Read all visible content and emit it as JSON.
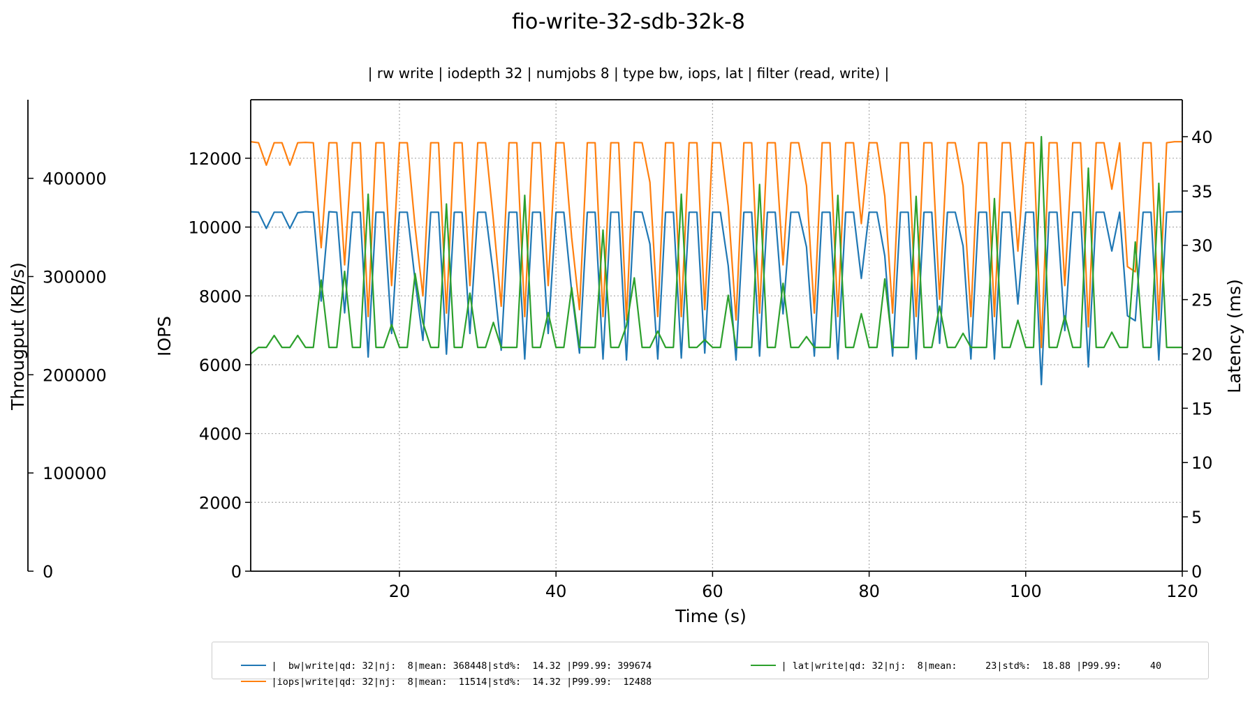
{
  "chart_data": {
    "type": "line",
    "title": "fio-write-32-sdb-32k-8",
    "subtitle": "| rw write | iodepth 32 | numjobs 8 | type bw, iops, lat | filter (read, write) |",
    "xlabel": "Time (s)",
    "ylabel_left": "IOPS",
    "ylabel_far_left": "Througput (KB/s)",
    "ylabel_right": "Latency (ms)",
    "xlim": [
      1,
      120
    ],
    "ylim_iops": [
      0,
      13700
    ],
    "ylim_bw": [
      0,
      480000
    ],
    "ylim_lat": [
      0,
      43.4
    ],
    "x_ticks": [
      20,
      40,
      60,
      80,
      100,
      120
    ],
    "iops_ticks": [
      0,
      2000,
      4000,
      6000,
      8000,
      10000,
      12000
    ],
    "bw_ticks": [
      0,
      100000,
      200000,
      300000,
      400000
    ],
    "lat_ticks": [
      0,
      5,
      10,
      15,
      20,
      25,
      30,
      35,
      40
    ],
    "grid": true,
    "legend_position": "bottom",
    "colors": {
      "bw": "#1f77b4",
      "iops": "#ff7f0e",
      "lat": "#2ca02c"
    },
    "series": [
      {
        "name": "|  bw|write|qd: 32|nj:  8|mean: 368448|std%:  14.32 |P99.99: 399674",
        "axis": "bw",
        "color": "#1f77b4",
        "x": [
          1,
          2,
          3,
          4,
          5,
          6,
          7,
          8,
          9,
          10,
          11,
          12,
          13,
          14,
          15,
          16,
          17,
          18,
          19,
          20,
          21,
          22,
          23,
          24,
          25,
          26,
          27,
          28,
          29,
          30,
          31,
          32,
          33,
          34,
          35,
          36,
          37,
          38,
          39,
          40,
          41,
          42,
          43,
          44,
          45,
          46,
          47,
          48,
          49,
          50,
          51,
          52,
          53,
          54,
          55,
          56,
          57,
          58,
          59,
          60,
          61,
          62,
          63,
          64,
          65,
          66,
          67,
          68,
          69,
          70,
          71,
          72,
          73,
          74,
          75,
          76,
          77,
          78,
          79,
          80,
          81,
          82,
          83,
          84,
          85,
          86,
          87,
          88,
          89,
          90,
          91,
          92,
          93,
          94,
          95,
          96,
          97,
          98,
          99,
          100,
          101,
          102,
          103,
          104,
          105,
          106,
          107,
          108,
          109,
          110,
          111,
          112,
          113,
          114,
          115,
          116,
          117,
          118,
          119,
          120
        ],
        "values": [
          366000,
          365500,
          349000,
          365500,
          365500,
          349000,
          365000,
          366000,
          365500,
          275000,
          366000,
          365500,
          263000,
          365500,
          365500,
          218000,
          365500,
          365500,
          242000,
          365500,
          365500,
          296000,
          235000,
          365500,
          365500,
          221000,
          365500,
          365500,
          242000,
          365500,
          365500,
          302000,
          225000,
          365500,
          365500,
          216000,
          365500,
          365500,
          242000,
          365500,
          365500,
          285000,
          222000,
          365500,
          365500,
          216000,
          365500,
          365500,
          215000,
          366000,
          365500,
          333000,
          216000,
          365500,
          365500,
          217000,
          365500,
          365500,
          222000,
          365500,
          365500,
          311000,
          215000,
          365500,
          365500,
          219000,
          365500,
          365500,
          262000,
          365500,
          365500,
          330000,
          219000,
          365500,
          365500,
          216000,
          365500,
          365500,
          298000,
          365500,
          365500,
          321000,
          219000,
          365500,
          365500,
          216000,
          365500,
          365500,
          232000,
          365500,
          365500,
          331000,
          216000,
          365500,
          365500,
          216000,
          365500,
          365500,
          272000,
          365500,
          365500,
          190000,
          365500,
          365500,
          245000,
          365500,
          365500,
          208000,
          365500,
          365500,
          326000,
          365500,
          260000,
          255000,
          365500,
          365500,
          215000,
          365500,
          366000,
          366000
        ]
      },
      {
        "name": "|iops|write|qd: 32|nj:  8|mean:  11514|std%:  14.32 |P99.99:  12488",
        "axis": "iops",
        "color": "#ff7f0e",
        "x": [
          1,
          2,
          3,
          4,
          5,
          6,
          7,
          8,
          9,
          10,
          11,
          12,
          13,
          14,
          15,
          16,
          17,
          18,
          19,
          20,
          21,
          22,
          23,
          24,
          25,
          26,
          27,
          28,
          29,
          30,
          31,
          32,
          33,
          34,
          35,
          36,
          37,
          38,
          39,
          40,
          41,
          42,
          43,
          44,
          45,
          46,
          47,
          48,
          49,
          50,
          51,
          52,
          53,
          54,
          55,
          56,
          57,
          58,
          59,
          60,
          61,
          62,
          63,
          64,
          65,
          66,
          67,
          68,
          69,
          70,
          71,
          72,
          73,
          74,
          75,
          76,
          77,
          78,
          79,
          80,
          81,
          82,
          83,
          84,
          85,
          86,
          87,
          88,
          89,
          90,
          91,
          92,
          93,
          94,
          95,
          96,
          97,
          98,
          99,
          100,
          101,
          102,
          103,
          104,
          105,
          106,
          107,
          108,
          109,
          110,
          111,
          112,
          113,
          114,
          115,
          116,
          117,
          118,
          119,
          120
        ],
        "values": [
          12480,
          12450,
          11800,
          12450,
          12450,
          11800,
          12450,
          12460,
          12450,
          9400,
          12450,
          12450,
          8900,
          12450,
          12450,
          7400,
          12450,
          12450,
          8300,
          12450,
          12450,
          10000,
          8000,
          12450,
          12450,
          7500,
          12450,
          12450,
          8300,
          12450,
          12450,
          10200,
          7700,
          12450,
          12450,
          7400,
          12450,
          12450,
          8300,
          12450,
          12450,
          9700,
          7600,
          12450,
          12450,
          7400,
          12450,
          12450,
          7300,
          12460,
          12450,
          11300,
          7400,
          12450,
          12450,
          7400,
          12450,
          12450,
          7600,
          12450,
          12450,
          10600,
          7300,
          12450,
          12450,
          7500,
          12450,
          12450,
          8900,
          12450,
          12450,
          11200,
          7500,
          12450,
          12450,
          7400,
          12450,
          12450,
          10100,
          12450,
          12450,
          10900,
          7500,
          12450,
          12450,
          7400,
          12450,
          12450,
          7900,
          12450,
          12450,
          11200,
          7400,
          12450,
          12450,
          7400,
          12450,
          12450,
          9300,
          12450,
          12450,
          6500,
          12450,
          12450,
          8300,
          12450,
          12450,
          7100,
          12450,
          12450,
          11100,
          12450,
          8850,
          8700,
          12450,
          12450,
          7300,
          12450,
          12480,
          12480
        ]
      },
      {
        "name": "| lat|write|qd: 32|nj:  8|mean:     23|std%:  18.88 |P99.99:     40",
        "axis": "lat",
        "color": "#2ca02c",
        "x": [
          1,
          2,
          3,
          4,
          5,
          6,
          7,
          8,
          9,
          10,
          11,
          12,
          13,
          14,
          15,
          16,
          17,
          18,
          19,
          20,
          21,
          22,
          23,
          24,
          25,
          26,
          27,
          28,
          29,
          30,
          31,
          32,
          33,
          34,
          35,
          36,
          37,
          38,
          39,
          40,
          41,
          42,
          43,
          44,
          45,
          46,
          47,
          48,
          49,
          50,
          51,
          52,
          53,
          54,
          55,
          56,
          57,
          58,
          59,
          60,
          61,
          62,
          63,
          64,
          65,
          66,
          67,
          68,
          69,
          70,
          71,
          72,
          73,
          74,
          75,
          76,
          77,
          78,
          79,
          80,
          81,
          82,
          83,
          84,
          85,
          86,
          87,
          88,
          89,
          90,
          91,
          92,
          93,
          94,
          95,
          96,
          97,
          98,
          99,
          100,
          101,
          102,
          103,
          104,
          105,
          106,
          107,
          108,
          109,
          110,
          111,
          112,
          113,
          114,
          115,
          116,
          117,
          118,
          119,
          120
        ],
        "values": [
          20.0,
          20.6,
          20.6,
          21.7,
          20.6,
          20.6,
          21.7,
          20.6,
          20.6,
          26.8,
          20.6,
          20.6,
          27.6,
          20.6,
          20.6,
          34.7,
          20.6,
          20.6,
          22.7,
          20.6,
          20.6,
          27.4,
          22.9,
          20.6,
          20.6,
          33.8,
          20.6,
          20.6,
          25.6,
          20.6,
          20.6,
          22.9,
          20.6,
          20.6,
          20.6,
          34.6,
          20.6,
          20.6,
          23.8,
          20.6,
          20.6,
          26.1,
          20.6,
          20.6,
          20.6,
          31.4,
          20.6,
          20.6,
          22.6,
          27.0,
          20.6,
          20.6,
          22.1,
          20.6,
          20.6,
          34.7,
          20.6,
          20.6,
          21.3,
          20.6,
          20.6,
          25.4,
          20.6,
          20.6,
          20.6,
          35.6,
          20.6,
          20.6,
          26.5,
          20.6,
          20.6,
          21.6,
          20.6,
          20.6,
          20.6,
          34.6,
          20.6,
          20.6,
          23.7,
          20.6,
          20.6,
          26.9,
          20.6,
          20.6,
          20.6,
          34.5,
          20.6,
          20.6,
          24.4,
          20.6,
          20.6,
          21.9,
          20.6,
          20.6,
          20.6,
          34.3,
          20.6,
          20.6,
          23.1,
          20.6,
          20.6,
          40.0,
          20.6,
          20.6,
          23.5,
          20.6,
          20.6,
          37.1,
          20.6,
          20.6,
          22.0,
          20.6,
          20.6,
          30.3,
          20.6,
          20.6,
          35.7,
          20.6,
          20.6,
          20.6
        ]
      }
    ]
  }
}
